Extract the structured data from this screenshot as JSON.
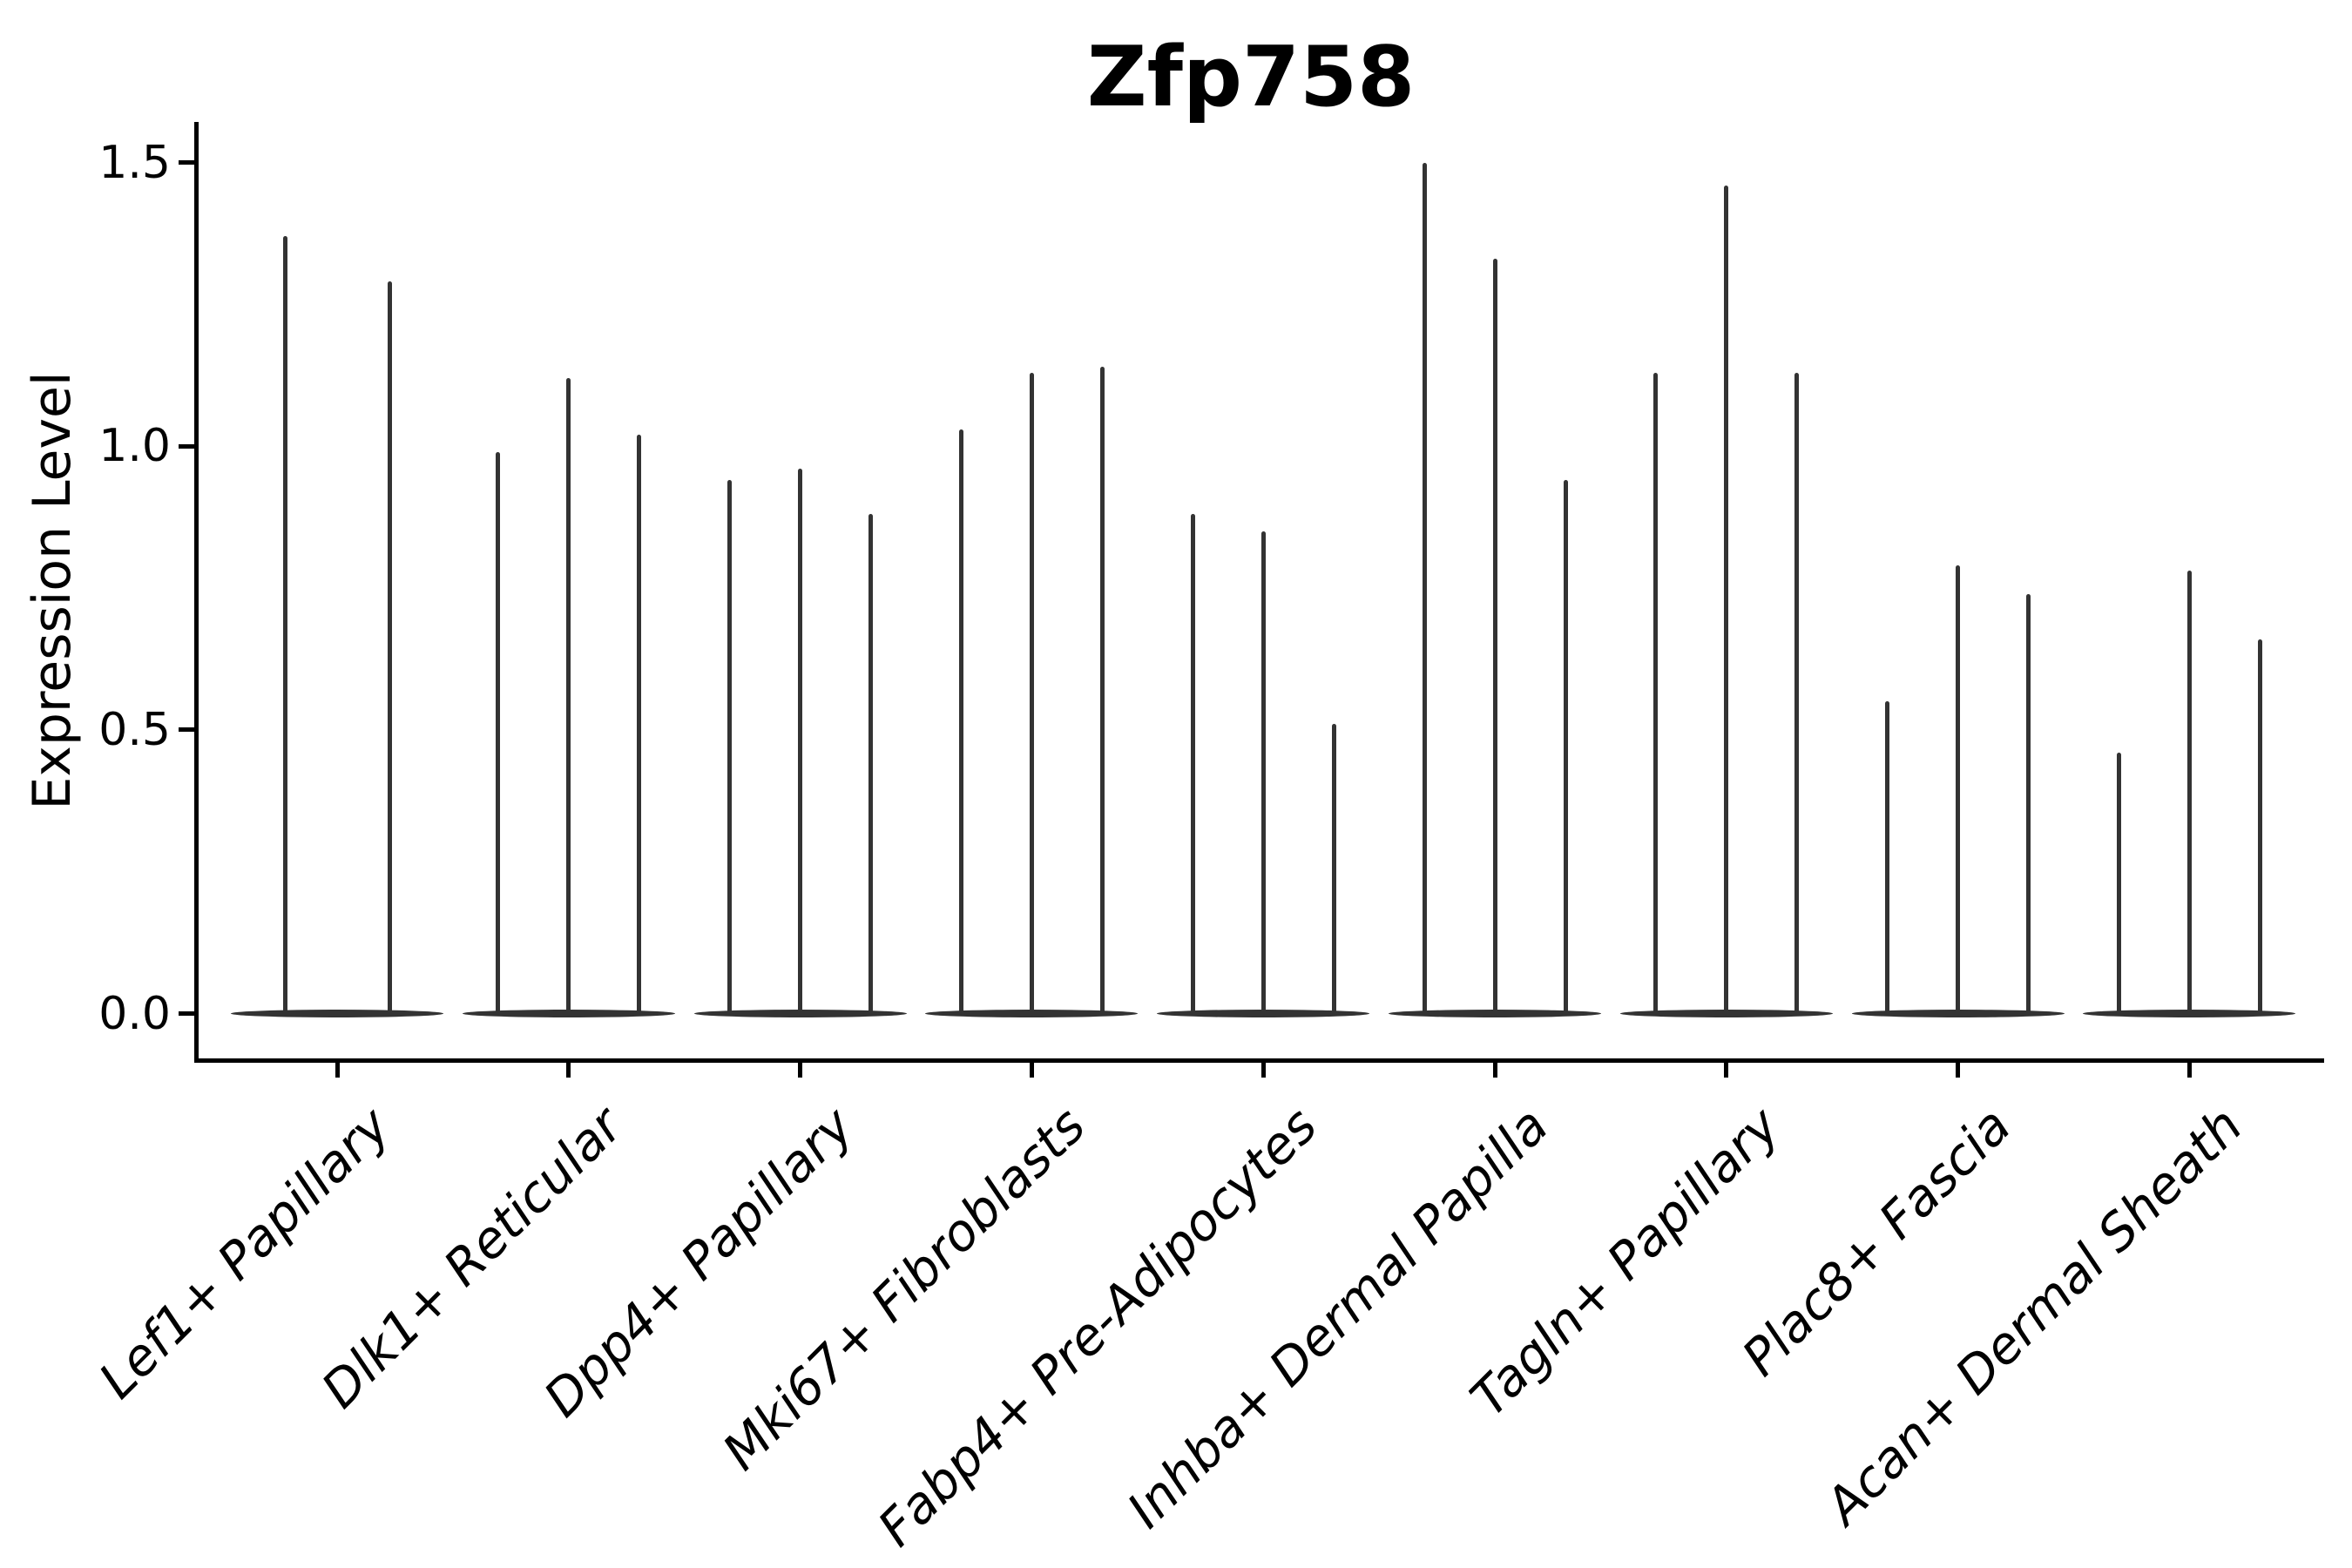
{
  "chart_data": {
    "type": "violin",
    "title": "Zfp758",
    "xlabel": "",
    "ylabel": "Expression Level",
    "yticks": [
      {
        "label": "0.0",
        "value": 0.0
      },
      {
        "label": "0.5",
        "value": 0.5
      },
      {
        "label": "1.0",
        "value": 1.0
      },
      {
        "label": "1.5",
        "value": 1.5
      }
    ],
    "ylim": [
      -0.08,
      1.57
    ],
    "grid": false,
    "legend": null,
    "description": "Zero-inflated expression violins: each violin is a thin spike rising from a flat base at 0; spike value = maximum expression level reached.",
    "categories": [
      "Lef1+ Papillary",
      "Dlk1+ Reticular",
      "Dpp4+ Papillary",
      "Mki67+ Fibroblasts",
      "Fabp4+ Pre-Adipocytes",
      "Inhba+ Dermal Papilla",
      "Tagln+ Papillary",
      "Plac8+ Fascia",
      "Acan+ Dermal Sheath"
    ],
    "groups": [
      {
        "category": "Lef1+ Papillary",
        "spike_maxima": [
          1.37,
          1.29
        ]
      },
      {
        "category": "Dlk1+ Reticular",
        "spike_maxima": [
          0.99,
          1.12,
          1.02
        ]
      },
      {
        "category": "Dpp4+ Papillary",
        "spike_maxima": [
          0.94,
          0.96,
          0.88
        ]
      },
      {
        "category": "Mki67+ Fibroblasts",
        "spike_maxima": [
          1.03,
          1.13,
          1.14
        ]
      },
      {
        "category": "Fabp4+ Pre-Adipocytes",
        "spike_maxima": [
          0.88,
          0.85,
          0.51
        ]
      },
      {
        "category": "Inhba+ Dermal Papilla",
        "spike_maxima": [
          1.5,
          1.33,
          0.94
        ]
      },
      {
        "category": "Tagln+ Papillary",
        "spike_maxima": [
          1.13,
          1.46,
          1.13
        ]
      },
      {
        "category": "Plac8+ Fascia",
        "spike_maxima": [
          0.55,
          0.79,
          0.74
        ]
      },
      {
        "category": "Acan+ Dermal Sheath",
        "spike_maxima": [
          0.46,
          0.78,
          0.66
        ]
      }
    ],
    "colors": {
      "violin": "#333333",
      "axis": "#000000",
      "text": "#000000",
      "background": "#ffffff"
    }
  }
}
